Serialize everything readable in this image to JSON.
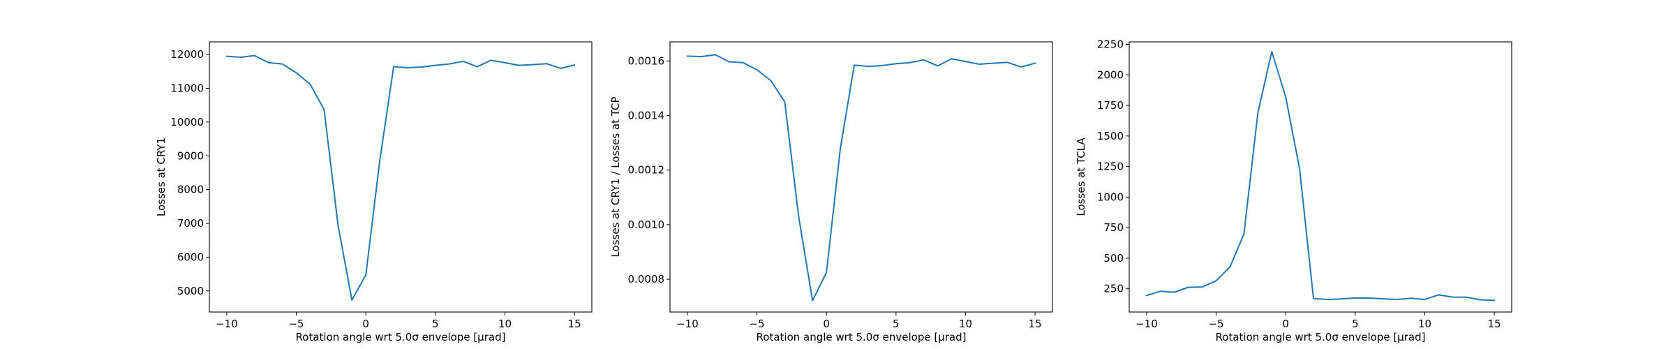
{
  "chart_data": [
    {
      "type": "line",
      "xlabel": "Rotation angle wrt 5.0σ envelope [μrad]",
      "ylabel": "Losses at CRY1",
      "xlim": [
        -11.25,
        16.25
      ],
      "ylim": [
        4375,
        12375
      ],
      "xticks": [
        -10,
        -5,
        0,
        5,
        10,
        15
      ],
      "xtick_labels": [
        "−10",
        "−5",
        "0",
        "5",
        "10",
        "15"
      ],
      "yticks": [
        5000,
        6000,
        7000,
        8000,
        9000,
        10000,
        11000,
        12000
      ],
      "ytick_labels": [
        "5000",
        "6000",
        "7000",
        "8000",
        "9000",
        "10000",
        "11000",
        "12000"
      ],
      "grid": false,
      "color": "#1f77b4",
      "series": [
        {
          "x": [
            -10,
            -9,
            -8,
            -7,
            -6,
            -5,
            -4,
            -3,
            -2,
            -1,
            0,
            1,
            2,
            3,
            4,
            5,
            6,
            7,
            8,
            9,
            10,
            11,
            12,
            13,
            14,
            15
          ],
          "y": [
            11950,
            11920,
            11970,
            11760,
            11720,
            11460,
            11120,
            10370,
            6950,
            4730,
            5470,
            8850,
            11640,
            11610,
            11630,
            11680,
            11720,
            11800,
            11640,
            11830,
            11760,
            11680,
            11700,
            11730,
            11590,
            11690
          ]
        }
      ]
    },
    {
      "type": "line",
      "xlabel": "Rotation angle wrt 5.0σ envelope [μrad]",
      "ylabel": "Losses at CRY1 / Losses at TCP",
      "xlim": [
        -11.25,
        16.25
      ],
      "ylim": [
        0.00068,
        0.00167
      ],
      "xticks": [
        -10,
        -5,
        0,
        5,
        10,
        15
      ],
      "xtick_labels": [
        "−10",
        "−5",
        "0",
        "5",
        "10",
        "15"
      ],
      "yticks": [
        0.0008,
        0.001,
        0.0012,
        0.0014,
        0.0016
      ],
      "ytick_labels": [
        "0.0008",
        "0.0010",
        "0.0012",
        "0.0014",
        "0.0016"
      ],
      "grid": false,
      "color": "#1f77b4",
      "series": [
        {
          "x": [
            -10,
            -9,
            -8,
            -7,
            -6,
            -5,
            -4,
            -3,
            -2,
            -1,
            0,
            1,
            2,
            3,
            4,
            5,
            6,
            7,
            8,
            9,
            10,
            11,
            12,
            13,
            14,
            15
          ],
          "y": [
            0.001618,
            0.001616,
            0.001623,
            0.001597,
            0.001594,
            0.001568,
            0.001528,
            0.00145,
            0.00103,
            0.000722,
            0.000825,
            0.00128,
            0.001585,
            0.00158,
            0.001583,
            0.00159,
            0.001594,
            0.001604,
            0.001582,
            0.001608,
            0.001598,
            0.001588,
            0.001592,
            0.001595,
            0.001578,
            0.001592
          ]
        }
      ]
    },
    {
      "type": "line",
      "xlabel": "Rotation angle wrt 5.0σ envelope [μrad]",
      "ylabel": "Losses at TCLA",
      "xlim": [
        -11.25,
        16.25
      ],
      "ylim": [
        60,
        2270
      ],
      "xticks": [
        -10,
        -5,
        0,
        5,
        10,
        15
      ],
      "xtick_labels": [
        "−10",
        "−5",
        "0",
        "5",
        "10",
        "15"
      ],
      "yticks": [
        250,
        500,
        750,
        1000,
        1250,
        1500,
        1750,
        2000,
        2250
      ],
      "ytick_labels": [
        "250",
        "500",
        "750",
        "1000",
        "1250",
        "1500",
        "1750",
        "2000",
        "2250"
      ],
      "grid": false,
      "color": "#1f77b4",
      "series": [
        {
          "x": [
            -10,
            -9,
            -8,
            -7,
            -6,
            -5,
            -4,
            -3,
            -2,
            -1,
            0,
            1,
            2,
            3,
            4,
            5,
            6,
            7,
            8,
            9,
            10,
            11,
            12,
            13,
            14,
            15
          ],
          "y": [
            195,
            230,
            222,
            262,
            265,
            315,
            430,
            700,
            1690,
            2190,
            1820,
            1230,
            170,
            162,
            167,
            175,
            174,
            168,
            163,
            172,
            163,
            200,
            182,
            181,
            160,
            155
          ]
        }
      ]
    }
  ]
}
